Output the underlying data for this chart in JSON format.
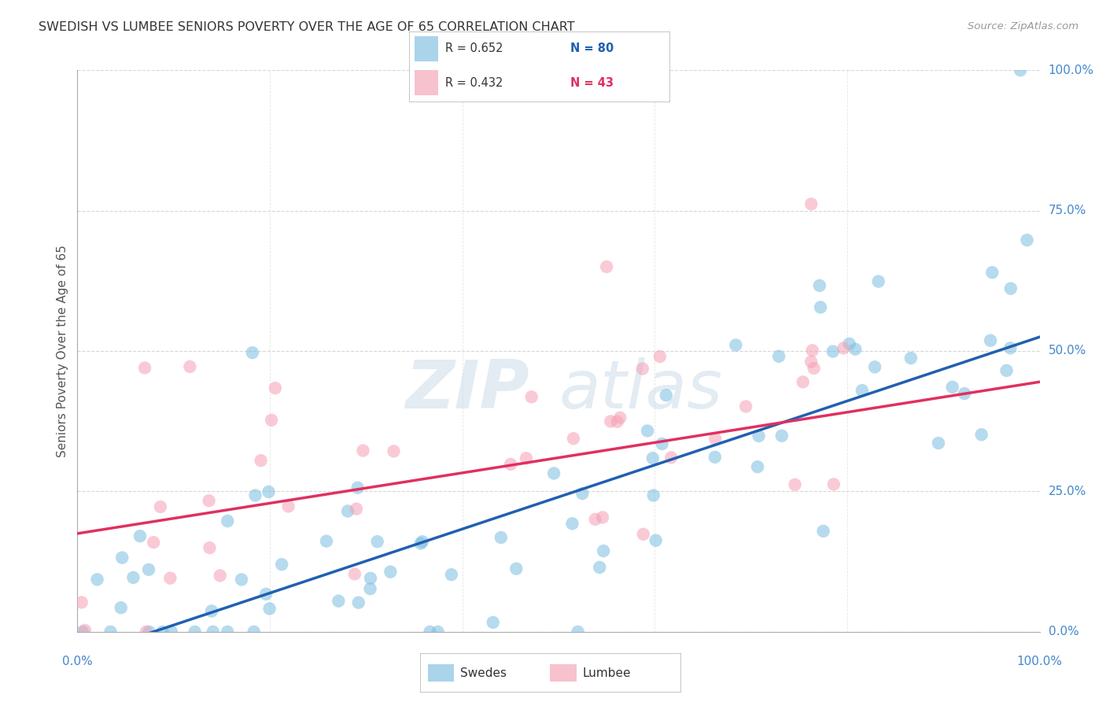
{
  "title": "SWEDISH VS LUMBEE SENIORS POVERTY OVER THE AGE OF 65 CORRELATION CHART",
  "source": "Source: ZipAtlas.com",
  "ylabel": "Seniors Poverty Over the Age of 65",
  "swedes_color": "#7bbde0",
  "lumbee_color": "#f5a0b5",
  "swedes_line_color": "#2060b0",
  "lumbee_line_color": "#e03060",
  "watermark_color": "#c8d8e8",
  "grid_color": "#cccccc",
  "title_color": "#333333",
  "right_label_color": "#4488cc",
  "bottom_label_color": "#4488cc",
  "source_color": "#999999",
  "ylabel_color": "#555555",
  "swedes_slope": 0.57,
  "swedes_intercept": -4.5,
  "lumbee_slope": 0.27,
  "lumbee_intercept": 17.5,
  "ylim_max": 100,
  "xlim_max": 100,
  "right_tick_labels": [
    "0.0%",
    "25.0%",
    "50.0%",
    "75.0%",
    "100.0%"
  ],
  "right_tick_values": [
    0,
    25,
    50,
    75,
    100
  ],
  "bottom_tick_left": "0.0%",
  "bottom_tick_right": "100.0%",
  "legend_entries": [
    {
      "label": "R = 0.652",
      "n_label": "N = 80",
      "color": "#7bbde0",
      "line_color": "#2060b0"
    },
    {
      "label": "R = 0.432",
      "n_label": "N = 43",
      "color": "#f5a0b5",
      "line_color": "#e03060"
    }
  ],
  "bottom_legend": [
    {
      "label": "Swedes",
      "color": "#7bbde0"
    },
    {
      "label": "Lumbee",
      "color": "#f5a0b5"
    }
  ]
}
